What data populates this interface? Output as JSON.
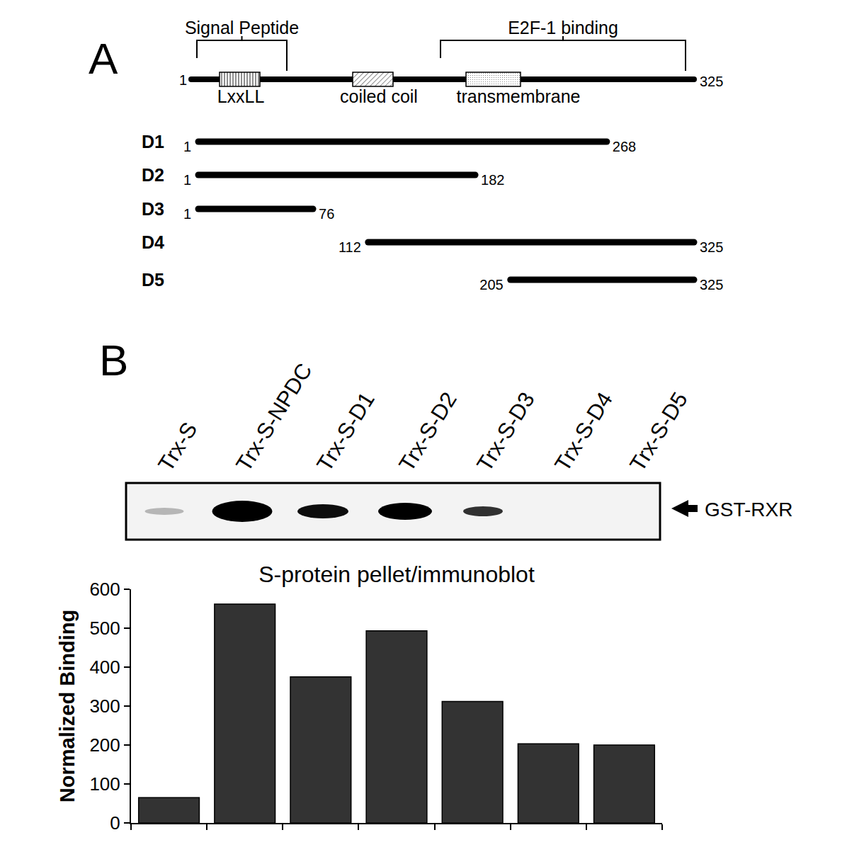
{
  "panel_a": {
    "label": "A",
    "protein": {
      "start": 1,
      "end": 325
    },
    "brackets": [
      "Signal Peptide",
      "E2F-1 binding"
    ],
    "domains": [
      "LxxLL",
      "coiled coil",
      "transmembrane"
    ],
    "constructs": [
      {
        "name": "D1",
        "start": 1,
        "end": 268
      },
      {
        "name": "D2",
        "start": 1,
        "end": 182
      },
      {
        "name": "D3",
        "start": 1,
        "end": 76
      },
      {
        "name": "D4",
        "start": 112,
        "end": 325
      },
      {
        "name": "D5",
        "start": 205,
        "end": 325
      }
    ]
  },
  "panel_b": {
    "label": "B",
    "lanes": [
      "Trx-S",
      "Trx-S-NPDC",
      "Trx-S-D1",
      "Trx-S-D2",
      "Trx-S-D3",
      "Trx-S-D4",
      "Trx-S-D5"
    ],
    "band_label": "GST-RXR"
  },
  "chart_data": {
    "type": "bar",
    "title": "S-protein pellet/immunoblot",
    "categories": [
      null,
      null,
      null,
      null,
      null,
      null,
      null
    ],
    "values": [
      65,
      562,
      375,
      493,
      312,
      203,
      200
    ],
    "color": "#333333",
    "y_label": "Normalized Binding",
    "ylim": [
      0,
      600
    ],
    "yticks": [
      0,
      100,
      200,
      300,
      400,
      500,
      600
    ],
    "grid": false,
    "tick_labels": "y"
  }
}
